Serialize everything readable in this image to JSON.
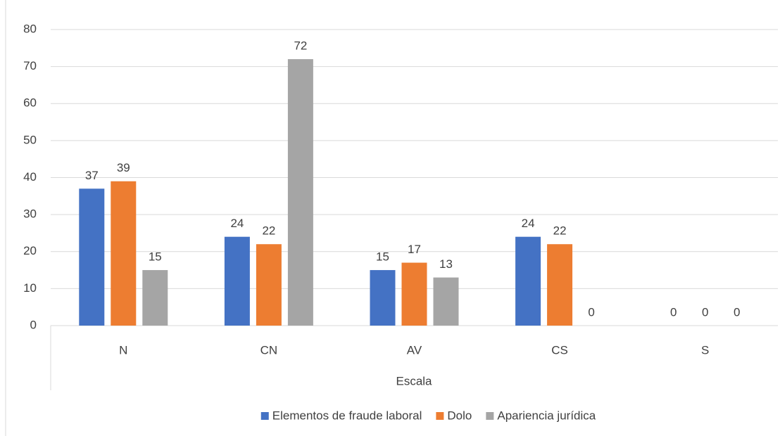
{
  "chart_data": {
    "type": "bar",
    "categories": [
      "N",
      "CN",
      "AV",
      "CS",
      "S"
    ],
    "series": [
      {
        "name": "Elementos de fraude laboral",
        "color": "#4472c4",
        "values": [
          37,
          24,
          15,
          24,
          0
        ]
      },
      {
        "name": "Dolo",
        "color": "#ed7d31",
        "values": [
          39,
          22,
          17,
          22,
          0
        ]
      },
      {
        "name": "Apariencia jurídica",
        "color": "#a5a5a5",
        "values": [
          15,
          72,
          13,
          0,
          0
        ]
      }
    ],
    "x_label": "Escala",
    "ylim": [
      0,
      80
    ],
    "yticks": [
      0,
      10,
      20,
      30,
      40,
      50,
      60,
      70,
      80
    ],
    "grid": true,
    "legend": "bottom"
  }
}
